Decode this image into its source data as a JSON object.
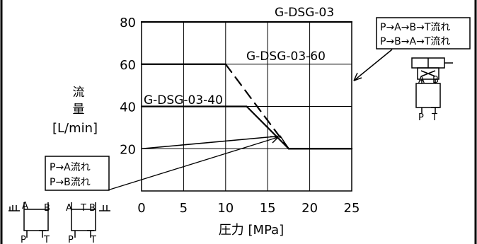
{
  "chart_data": {
    "type": "line",
    "title": "",
    "xlabel": "圧力 [MPa]",
    "ylabel_lines": [
      "流",
      "量",
      "[L/min]"
    ],
    "xlim": [
      0,
      25
    ],
    "ylim": [
      0,
      80
    ],
    "x_ticks": [
      "0",
      "5",
      "10",
      "15",
      "20",
      "25"
    ],
    "y_ticks": [
      "20",
      "40",
      "60",
      "80"
    ],
    "grid": true,
    "series": [
      {
        "name": "G-DSG-03",
        "x": [
          0,
          25
        ],
        "y": [
          80,
          80
        ]
      },
      {
        "name": "G-DSG-03-60",
        "x": [
          0,
          10,
          17.5,
          25
        ],
        "y": [
          60,
          60,
          20,
          20
        ]
      },
      {
        "name": "G-DSG-03-40",
        "x": [
          0,
          12.5,
          17.5,
          25
        ],
        "y": [
          40,
          40,
          20,
          20
        ]
      },
      {
        "name": "",
        "x": [
          0,
          16.5,
          17.5,
          25
        ],
        "y": [
          20,
          26,
          20,
          20
        ]
      }
    ],
    "annotations": {
      "right_box": [
        "P→A→B→T流れ",
        "P→B→A→T流れ"
      ],
      "left_box": [
        "P→A流れ",
        "P→B流れ"
      ]
    },
    "symbol_labels": {
      "right": {
        "a": "A",
        "b": "B",
        "p": "P",
        "t": "T"
      },
      "left1": {
        "a": "A",
        "b": "B",
        "p": "P",
        "t": "T"
      },
      "left2": {
        "a": "A",
        "b": "B",
        "p": "P",
        "t": "T"
      }
    }
  }
}
